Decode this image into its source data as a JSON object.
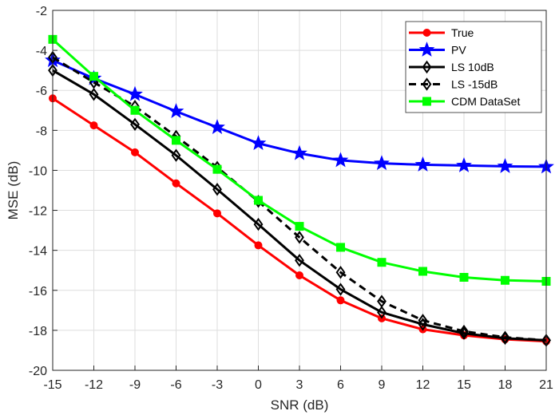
{
  "chart_data": {
    "type": "line",
    "title": "",
    "xlabel": "SNR (dB)",
    "ylabel": "MSE (dB)",
    "xlim": [
      -15,
      21
    ],
    "ylim": [
      -20,
      -2
    ],
    "xticks": [
      -15,
      -12,
      -9,
      -6,
      -3,
      0,
      3,
      6,
      9,
      12,
      15,
      18,
      21
    ],
    "yticks": [
      -20,
      -18,
      -16,
      -14,
      -12,
      -10,
      -8,
      -6,
      -4,
      -2
    ],
    "grid": true,
    "legend_position": "top-right",
    "x": [
      -15,
      -12,
      -9,
      -6,
      -3,
      0,
      3,
      6,
      9,
      12,
      15,
      18,
      21
    ],
    "series": [
      {
        "name": "True",
        "color": "#ff0000",
        "marker": "circle",
        "dash": "solid",
        "values": [
          -6.4,
          -7.75,
          -9.1,
          -10.65,
          -12.15,
          -13.75,
          -15.25,
          -16.5,
          -17.4,
          -17.95,
          -18.25,
          -18.45,
          -18.55
        ]
      },
      {
        "name": "PV",
        "color": "#0000ff",
        "marker": "star",
        "dash": "solid",
        "values": [
          -4.5,
          -5.4,
          -6.2,
          -7.05,
          -7.85,
          -8.65,
          -9.15,
          -9.5,
          -9.65,
          -9.72,
          -9.76,
          -9.8,
          -9.82
        ]
      },
      {
        "name": "LS 10dB",
        "color": "#000000",
        "marker": "diamond",
        "dash": "solid",
        "values": [
          -5.0,
          -6.2,
          -7.7,
          -9.25,
          -10.95,
          -12.7,
          -14.5,
          -15.95,
          -17.1,
          -17.7,
          -18.15,
          -18.4,
          -18.5
        ]
      },
      {
        "name": "LS -15dB",
        "color": "#000000",
        "marker": "diamond",
        "dash": "dashed",
        "values": [
          -4.35,
          -5.6,
          -6.8,
          -8.3,
          -9.85,
          -11.55,
          -13.35,
          -15.1,
          -16.55,
          -17.5,
          -18.05,
          -18.35,
          -18.5
        ]
      },
      {
        "name": "CDM DataSet",
        "color": "#00ff00",
        "marker": "square",
        "dash": "solid",
        "values": [
          -3.45,
          -5.3,
          -7.0,
          -8.5,
          -9.95,
          -11.5,
          -12.8,
          -13.85,
          -14.6,
          -15.05,
          -15.35,
          -15.5,
          -15.55
        ]
      }
    ]
  }
}
